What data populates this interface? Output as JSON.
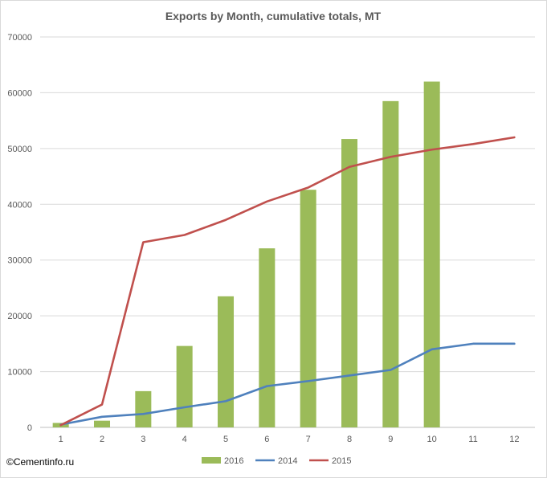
{
  "copyright": "©Cementinfo.ru",
  "chart_data": {
    "type": "bar",
    "title": "Exports by Month, cumulative totals, MT",
    "xlabel": "",
    "ylabel": "",
    "categories": [
      "1",
      "2",
      "3",
      "4",
      "5",
      "6",
      "7",
      "8",
      "9",
      "10",
      "11",
      "12"
    ],
    "ylim": [
      0,
      70000
    ],
    "yticks": [
      0,
      10000,
      20000,
      30000,
      40000,
      50000,
      60000,
      70000
    ],
    "grid": true,
    "legend_position": "bottom",
    "series": [
      {
        "name": "2016",
        "type": "bar",
        "color": "#9bbb59",
        "values": [
          800,
          1200,
          6500,
          14600,
          23500,
          32100,
          42600,
          51700,
          58500,
          62000,
          null,
          null
        ]
      },
      {
        "name": "2014",
        "type": "line",
        "color": "#4f81bd",
        "values": [
          500,
          1900,
          2400,
          3600,
          4700,
          7400,
          8300,
          9300,
          10300,
          14000,
          15000,
          15000
        ]
      },
      {
        "name": "2015",
        "type": "line",
        "color": "#c0504d",
        "values": [
          400,
          4100,
          33200,
          34500,
          37200,
          40500,
          43000,
          46700,
          48500,
          49800,
          50800,
          52000
        ]
      }
    ]
  }
}
